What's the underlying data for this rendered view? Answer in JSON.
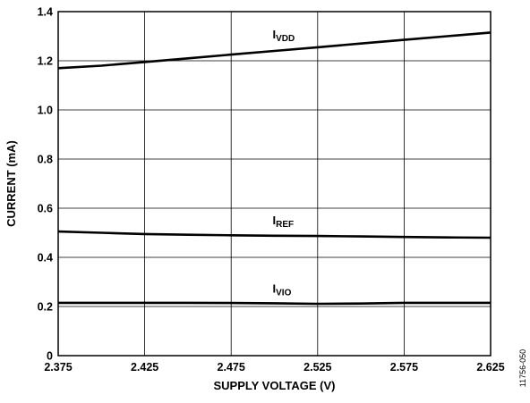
{
  "chart_data": {
    "type": "line",
    "xlabel": "SUPPLY VOLTAGE (V)",
    "ylabel": "CURRENT (mA)",
    "xlim": [
      2.375,
      2.625
    ],
    "ylim": [
      0,
      1.4
    ],
    "x_ticks": [
      2.375,
      2.425,
      2.475,
      2.525,
      2.575,
      2.625
    ],
    "x_tick_labels": [
      "2.375",
      "2.425",
      "2.475",
      "2.525",
      "2.575",
      "2.625"
    ],
    "y_ticks": [
      0,
      0.2,
      0.4,
      0.6,
      0.8,
      1.0,
      1.2,
      1.4
    ],
    "y_tick_labels": [
      "0",
      "0.2",
      "0.4",
      "0.6",
      "0.8",
      "1.0",
      "1.2",
      "1.4"
    ],
    "grid": true,
    "legend": "none",
    "series": [
      {
        "name": "IVDD",
        "label_main": "I",
        "label_sub": "VDD",
        "x": [
          2.375,
          2.4,
          2.425,
          2.45,
          2.475,
          2.5,
          2.525,
          2.55,
          2.575,
          2.6,
          2.625
        ],
        "y": [
          1.17,
          1.18,
          1.195,
          1.21,
          1.225,
          1.24,
          1.255,
          1.27,
          1.285,
          1.3,
          1.315
        ]
      },
      {
        "name": "IREF",
        "label_main": "I",
        "label_sub": "REF",
        "x": [
          2.375,
          2.4,
          2.425,
          2.45,
          2.475,
          2.5,
          2.525,
          2.55,
          2.575,
          2.6,
          2.625
        ],
        "y": [
          0.505,
          0.5,
          0.495,
          0.492,
          0.49,
          0.488,
          0.487,
          0.485,
          0.483,
          0.481,
          0.48
        ]
      },
      {
        "name": "IVIO",
        "label_main": "I",
        "label_sub": "VIO",
        "x": [
          2.375,
          2.4,
          2.425,
          2.45,
          2.475,
          2.5,
          2.525,
          2.55,
          2.575,
          2.6,
          2.625
        ],
        "y": [
          0.215,
          0.215,
          0.215,
          0.215,
          0.214,
          0.213,
          0.211,
          0.212,
          0.215,
          0.215,
          0.215
        ]
      }
    ]
  },
  "figure_id": "11756-050",
  "colors": {
    "line": "#000000",
    "grid": "#000000",
    "background": "#ffffff"
  }
}
